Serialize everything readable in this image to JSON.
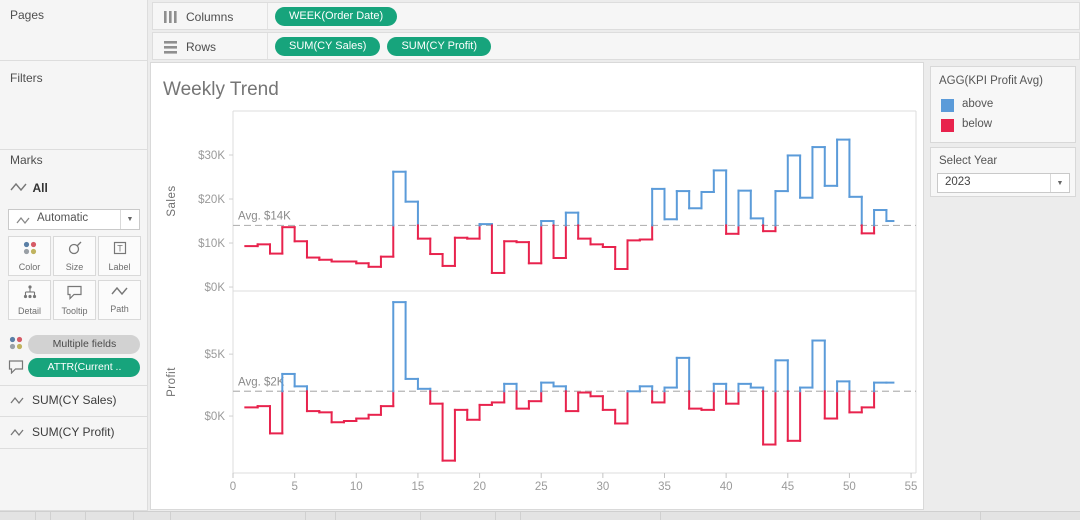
{
  "chart": {
    "title": "Weekly Trend"
  },
  "shelves": {
    "pages_label": "Pages",
    "filters_label": "Filters",
    "pill_color": "#17a47c",
    "columns": {
      "label": "Columns",
      "pills": [
        "WEEK(Order Date)"
      ]
    },
    "rows": {
      "label": "Rows",
      "pills": [
        "SUM(CY Sales)",
        "SUM(CY Profit)"
      ]
    }
  },
  "marks": {
    "header": "Marks",
    "card_title": "All",
    "mark_type": "Automatic",
    "buttons": [
      "Color",
      "Size",
      "Label",
      "Detail",
      "Tooltip",
      "Path"
    ],
    "color_pill": "Multiple fields",
    "tooltip_pill": "ATTR(Current ..",
    "measure_cards": [
      "SUM(CY Sales)",
      "SUM(CY Profit)"
    ]
  },
  "legend": {
    "title": "AGG(KPI Profit Avg)",
    "items": [
      {
        "label": "above",
        "color": "#5b9bd9"
      },
      {
        "label": "below",
        "color": "#e8234d"
      }
    ]
  },
  "year_filter": {
    "label": "Select Year",
    "value": "2023"
  },
  "chart_data": [
    {
      "type": "line",
      "style": "step",
      "name": "CY Sales",
      "ylabel": "Sales",
      "unit": "thousand dollars",
      "x_weeks": {
        "from": 1,
        "to": 53,
        "step": 1
      },
      "values": [
        9.3,
        9.7,
        7.6,
        13.6,
        10.4,
        6.7,
        6.2,
        5.8,
        5.8,
        5.4,
        4.6,
        6.9,
        26.2,
        19.4,
        11.0,
        7.5,
        4.8,
        11.2,
        11.0,
        14.3,
        3.2,
        10.4,
        10.2,
        5.4,
        15.0,
        6.6,
        16.9,
        11.0,
        9.7,
        9.1,
        4.1,
        10.6,
        10.8,
        22.3,
        15.4,
        21.8,
        17.9,
        21.6,
        26.5,
        12.1,
        21.9,
        15.6,
        12.7,
        21.8,
        29.9,
        20.3,
        31.8,
        23.0,
        33.5,
        20.5,
        12.2,
        17.5,
        15.0
      ],
      "avg": 14,
      "avg_label": "Avg. $14K",
      "yticks": [
        {
          "value": 0,
          "label": "$0K"
        },
        {
          "value": 10,
          "label": "$10K"
        },
        {
          "value": 20,
          "label": "$20K"
        },
        {
          "value": 30,
          "label": "$30K"
        }
      ],
      "xticks": [
        0,
        5,
        10,
        15,
        20,
        25,
        30,
        35,
        40,
        45,
        50,
        55
      ],
      "xlim": [
        0,
        55.4
      ],
      "ylim": [
        -0.9,
        40.0
      ],
      "grid": false,
      "colors": {
        "above": "#5b9bd9",
        "below": "#e8234d"
      },
      "color_rule": "blue when value >= average, red when below; average shown as gray dashed reference line"
    },
    {
      "type": "line",
      "style": "step",
      "name": "CY Profit",
      "ylabel": "Profit",
      "unit": "thousand dollars",
      "x_weeks": {
        "from": 1,
        "to": 53,
        "step": 1
      },
      "values": [
        0.7,
        0.8,
        -1.4,
        3.4,
        2.4,
        0.4,
        0.3,
        -0.5,
        -0.4,
        -0.2,
        0.1,
        0.8,
        9.2,
        3.0,
        2.2,
        1.0,
        -3.6,
        0.5,
        -0.3,
        0.9,
        1.1,
        2.6,
        0.6,
        1.2,
        2.7,
        2.4,
        0.4,
        1.9,
        1.6,
        0.5,
        -0.6,
        2.0,
        2.4,
        1.1,
        2.3,
        4.7,
        0.6,
        0.5,
        2.6,
        1.0,
        2.6,
        2.3,
        -2.3,
        4.5,
        -2.0,
        2.3,
        6.1,
        -0.2,
        2.8,
        0.3,
        0.7,
        2.7,
        2.7
      ],
      "avg": 2,
      "avg_label": "Avg. $2K",
      "yticks": [
        {
          "value": 0,
          "label": "$0K"
        },
        {
          "value": 5,
          "label": "$5K"
        }
      ],
      "xticks": [
        0,
        5,
        10,
        15,
        20,
        25,
        30,
        35,
        40,
        45,
        50,
        55
      ],
      "xlim": [
        0,
        55.4
      ],
      "ylim": [
        -4.6,
        10.1
      ],
      "grid": false,
      "colors": {
        "above": "#5b9bd9",
        "below": "#e8234d"
      },
      "color_rule": "blue when value >= average, red when below; average shown as gray dashed reference line"
    }
  ]
}
